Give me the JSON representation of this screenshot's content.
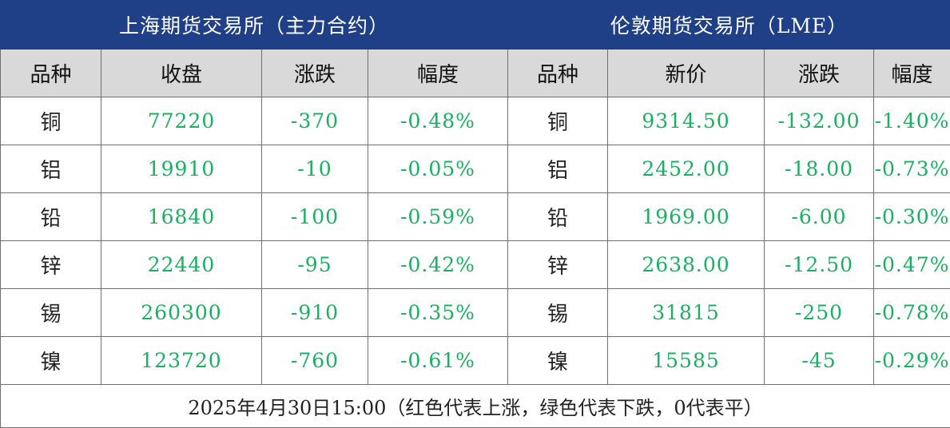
{
  "header": {
    "left_title": "上海期货交易所（主力合约）",
    "right_title": "伦敦期货交易所（LME）"
  },
  "columns": {
    "shfe": [
      "品种",
      "收盘",
      "涨跌",
      "幅度"
    ],
    "lme": [
      "品种",
      "新价",
      "涨跌",
      "幅度"
    ]
  },
  "rows": [
    {
      "name": "铜",
      "shfe_close": "77220",
      "shfe_change": "-370",
      "shfe_pct": "-0.48%",
      "lme_name": "铜",
      "lme_price": "9314.50",
      "lme_change": "-132.00",
      "lme_pct": "-1.40%"
    },
    {
      "name": "铝",
      "shfe_close": "19910",
      "shfe_change": "-10",
      "shfe_pct": "-0.05%",
      "lme_name": "铝",
      "lme_price": "2452.00",
      "lme_change": "-18.00",
      "lme_pct": "-0.73%"
    },
    {
      "name": "铅",
      "shfe_close": "16840",
      "shfe_change": "-100",
      "shfe_pct": "-0.59%",
      "lme_name": "铅",
      "lme_price": "1969.00",
      "lme_change": "-6.00",
      "lme_pct": "-0.30%"
    },
    {
      "name": "锌",
      "shfe_close": "22440",
      "shfe_change": "-95",
      "shfe_pct": "-0.42%",
      "lme_name": "锌",
      "lme_price": "2638.00",
      "lme_change": "-12.50",
      "lme_pct": "-0.47%"
    },
    {
      "name": "锡",
      "shfe_close": "260300",
      "shfe_change": "-910",
      "shfe_pct": "-0.35%",
      "lme_name": "锡",
      "lme_price": "31815",
      "lme_change": "-250",
      "lme_pct": "-0.78%"
    },
    {
      "name": "镍",
      "shfe_close": "123720",
      "shfe_change": "-760",
      "shfe_pct": "-0.61%",
      "lme_name": "镍",
      "lme_price": "15585",
      "lme_change": "-45",
      "lme_pct": "-0.29%"
    }
  ],
  "footer": {
    "note": "2025年4月30日15:00（红色代表上涨，绿色代表下跌，0代表平）"
  },
  "colors": {
    "header_bg": "#1f3f86",
    "column_header_bg": "#d9d9d9",
    "down_green": "#19b060"
  }
}
